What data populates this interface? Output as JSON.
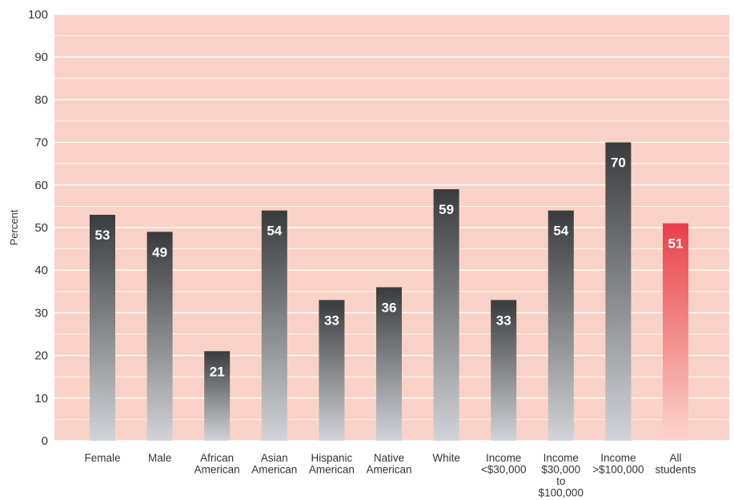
{
  "chart_data": {
    "type": "bar",
    "ylabel": "Percent",
    "ylim": [
      0,
      100
    ],
    "yticks": [
      "0",
      "10",
      "20",
      "30",
      "40",
      "50",
      "60",
      "70",
      "80",
      "90",
      "100"
    ],
    "grid": true,
    "categories": [
      [
        "Female"
      ],
      [
        "Male"
      ],
      [
        "African",
        "American"
      ],
      [
        "Asian",
        "American"
      ],
      [
        "Hispanic",
        "American"
      ],
      [
        "Native",
        "American"
      ],
      [
        "White"
      ],
      [
        "Income",
        "<$30,000"
      ],
      [
        "Income",
        "$30,000",
        "to",
        "$100,000"
      ],
      [
        "Income",
        ">$100,000"
      ],
      [
        "All",
        "students"
      ]
    ],
    "values": [
      53,
      49,
      21,
      54,
      33,
      36,
      59,
      33,
      54,
      70,
      51
    ],
    "value_labels": [
      "53",
      "49",
      "21",
      "54",
      "33",
      "36",
      "59",
      "33",
      "54",
      "70",
      "51"
    ],
    "highlight_index": 10,
    "colors": {
      "plot_background": "#f9d2c7",
      "grid": "#ffffff",
      "bar_top": "#3a3b3d",
      "bar_bottom": "#d2d3d8",
      "highlight_top": "#e8404a",
      "highlight_bottom": "#fcd5cc"
    }
  }
}
